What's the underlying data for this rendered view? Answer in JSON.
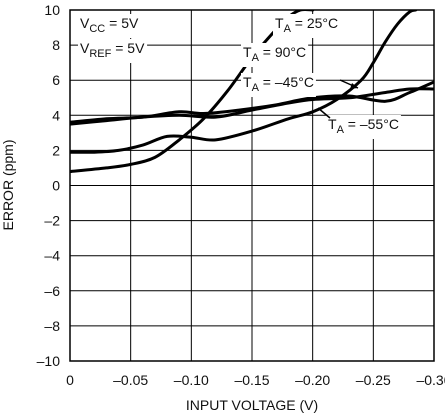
{
  "chart_data": {
    "type": "line",
    "title": "",
    "xlabel": "INPUT VOLTAGE (V)",
    "ylabel": "ERROR (ppm)",
    "xlim": [
      0,
      -0.3
    ],
    "ylim": [
      -10,
      10
    ],
    "xticks": [
      0,
      -0.05,
      -0.1,
      -0.15,
      -0.2,
      -0.25,
      -0.3
    ],
    "xtick_labels": [
      "0",
      "–0.05",
      "–0.10",
      "–0.15",
      "–0.20",
      "–0.25",
      "–0.30"
    ],
    "yticks": [
      -10,
      -8,
      -6,
      -4,
      -2,
      0,
      2,
      4,
      6,
      8,
      10
    ],
    "ytick_labels": [
      "–10",
      "–8",
      "–6",
      "–4",
      "–2",
      "0",
      "2",
      "4",
      "6",
      "8",
      "10"
    ],
    "grid": true,
    "conditions": [
      {
        "main": "V",
        "sub": "CC",
        "rest": " = 5V"
      },
      {
        "main": "V",
        "sub": "REF",
        "rest": " = 5V"
      }
    ],
    "series": [
      {
        "name": "TA = 25°C",
        "label": {
          "main": "T",
          "sub": "A",
          "rest": " = 25°C"
        },
        "x": [
          0,
          -0.03,
          -0.05,
          -0.07,
          -0.09,
          -0.11,
          -0.13,
          -0.15,
          -0.17,
          -0.18,
          -0.19,
          -0.2
        ],
        "y": [
          0.8,
          1.0,
          1.2,
          1.6,
          2.6,
          3.8,
          5.4,
          7.3,
          8.9,
          9.6,
          10.0,
          10.0
        ]
      },
      {
        "name": "TA = 90°C",
        "label": {
          "main": "T",
          "sub": "A",
          "rest": " = 90°C"
        },
        "x": [
          0,
          -0.02,
          -0.04,
          -0.06,
          -0.08,
          -0.1,
          -0.12,
          -0.15,
          -0.18,
          -0.2,
          -0.22,
          -0.24,
          -0.25,
          -0.26,
          -0.27,
          -0.28,
          -0.285
        ],
        "y": [
          1.9,
          1.9,
          2.0,
          2.3,
          2.8,
          2.75,
          2.6,
          3.1,
          3.8,
          4.2,
          4.9,
          6.0,
          7.0,
          8.2,
          9.2,
          9.9,
          10.0
        ]
      },
      {
        "name": "TA = –45°C",
        "label": {
          "main": "T",
          "sub": "A",
          "rest": " = –45°C"
        },
        "x": [
          0,
          -0.03,
          -0.06,
          -0.09,
          -0.11,
          -0.14,
          -0.17,
          -0.2,
          -0.23,
          -0.26,
          -0.28,
          -0.3
        ],
        "y": [
          3.6,
          3.8,
          3.9,
          4.2,
          4.1,
          4.3,
          4.6,
          5.0,
          5.1,
          4.8,
          5.3,
          5.9
        ]
      },
      {
        "name": "TA = –55°C",
        "label": {
          "main": "T",
          "sub": "A",
          "rest": " = –55°C"
        },
        "x": [
          0,
          -0.03,
          -0.06,
          -0.09,
          -0.12,
          -0.15,
          -0.18,
          -0.2,
          -0.23,
          -0.26,
          -0.28,
          -0.3
        ],
        "y": [
          3.5,
          3.7,
          3.9,
          4.0,
          3.9,
          4.3,
          4.7,
          4.9,
          5.0,
          5.3,
          5.5,
          5.5
        ]
      }
    ]
  }
}
